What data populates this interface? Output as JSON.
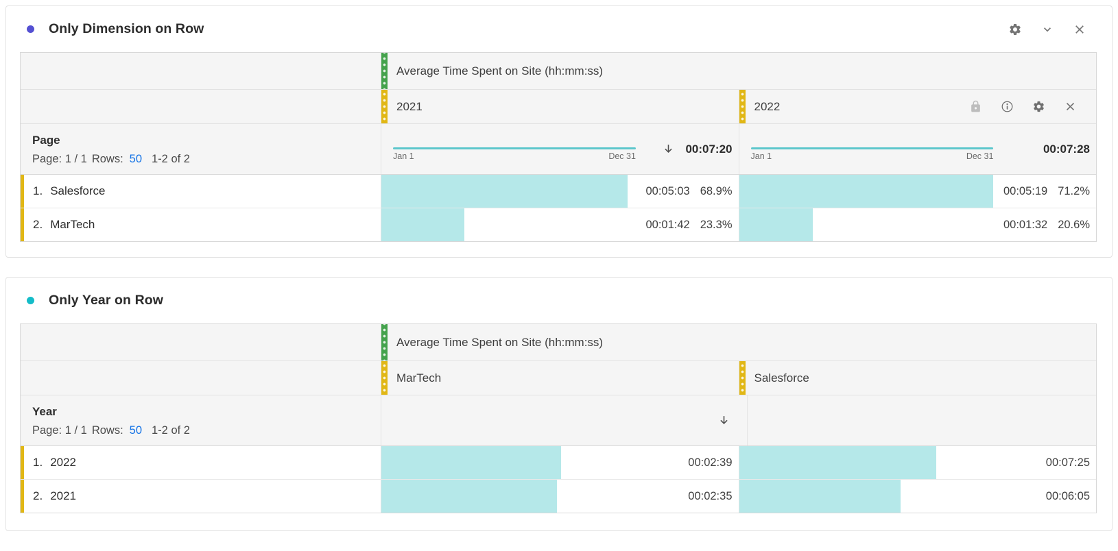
{
  "colors": {
    "panel1_dot": "#5450d2",
    "panel2_dot": "#14bcc8",
    "metric_strip_green": "#44a24c",
    "dimension_strip_yellow": "#e1b715",
    "row_strip_yellow": "#e1b715",
    "bar_fill": "#b5e8e9",
    "sparkline": "#5cc7cc",
    "link_blue": "#1473e6"
  },
  "panels": [
    {
      "title": "Only Dimension on Row",
      "table": {
        "metric_header": "Average Time Spent on Site (hh:mm:ss)",
        "row_dimension": {
          "title": "Page",
          "page_label": "Page: 1 / 1",
          "rows_label": "Rows:",
          "rows_per_page": "50",
          "range": "1-2 of 2"
        },
        "columns": [
          {
            "label": "2021",
            "sparkline_start": "Jan 1",
            "sparkline_end": "Dec 31",
            "sorted": true,
            "total": "00:07:20"
          },
          {
            "label": "2022",
            "sparkline_start": "Jan 1",
            "sparkline_end": "Dec 31",
            "sorted": false,
            "total": "00:07:28"
          }
        ],
        "rows": [
          {
            "rank": "1.",
            "label": "Salesforce",
            "cells": [
              {
                "time": "00:05:03",
                "percent": "68.9%",
                "bar_pct": 68.9
              },
              {
                "time": "00:05:19",
                "percent": "71.2%",
                "bar_pct": 71.2
              }
            ]
          },
          {
            "rank": "2.",
            "label": "MarTech",
            "cells": [
              {
                "time": "00:01:42",
                "percent": "23.3%",
                "bar_pct": 23.3
              },
              {
                "time": "00:01:32",
                "percent": "20.6%",
                "bar_pct": 20.6
              }
            ]
          }
        ]
      }
    },
    {
      "title": "Only Year on Row",
      "table": {
        "metric_header": "Average Time Spent on Site (hh:mm:ss)",
        "row_dimension": {
          "title": "Year",
          "page_label": "Page: 1 / 1",
          "rows_label": "Rows:",
          "rows_per_page": "50",
          "range": "1-2 of 2"
        },
        "columns": [
          {
            "label": "MarTech",
            "sorted": true
          },
          {
            "label": "Salesforce",
            "sorted": false
          }
        ],
        "rows": [
          {
            "rank": "1.",
            "label": "2022",
            "cells": [
              {
                "time": "00:02:39",
                "bar_pct": 50.3
              },
              {
                "time": "00:07:25",
                "bar_pct": 55.2
              }
            ]
          },
          {
            "rank": "2.",
            "label": "2021",
            "cells": [
              {
                "time": "00:02:35",
                "bar_pct": 49.1
              },
              {
                "time": "00:06:05",
                "bar_pct": 45.2
              }
            ]
          }
        ]
      }
    }
  ]
}
